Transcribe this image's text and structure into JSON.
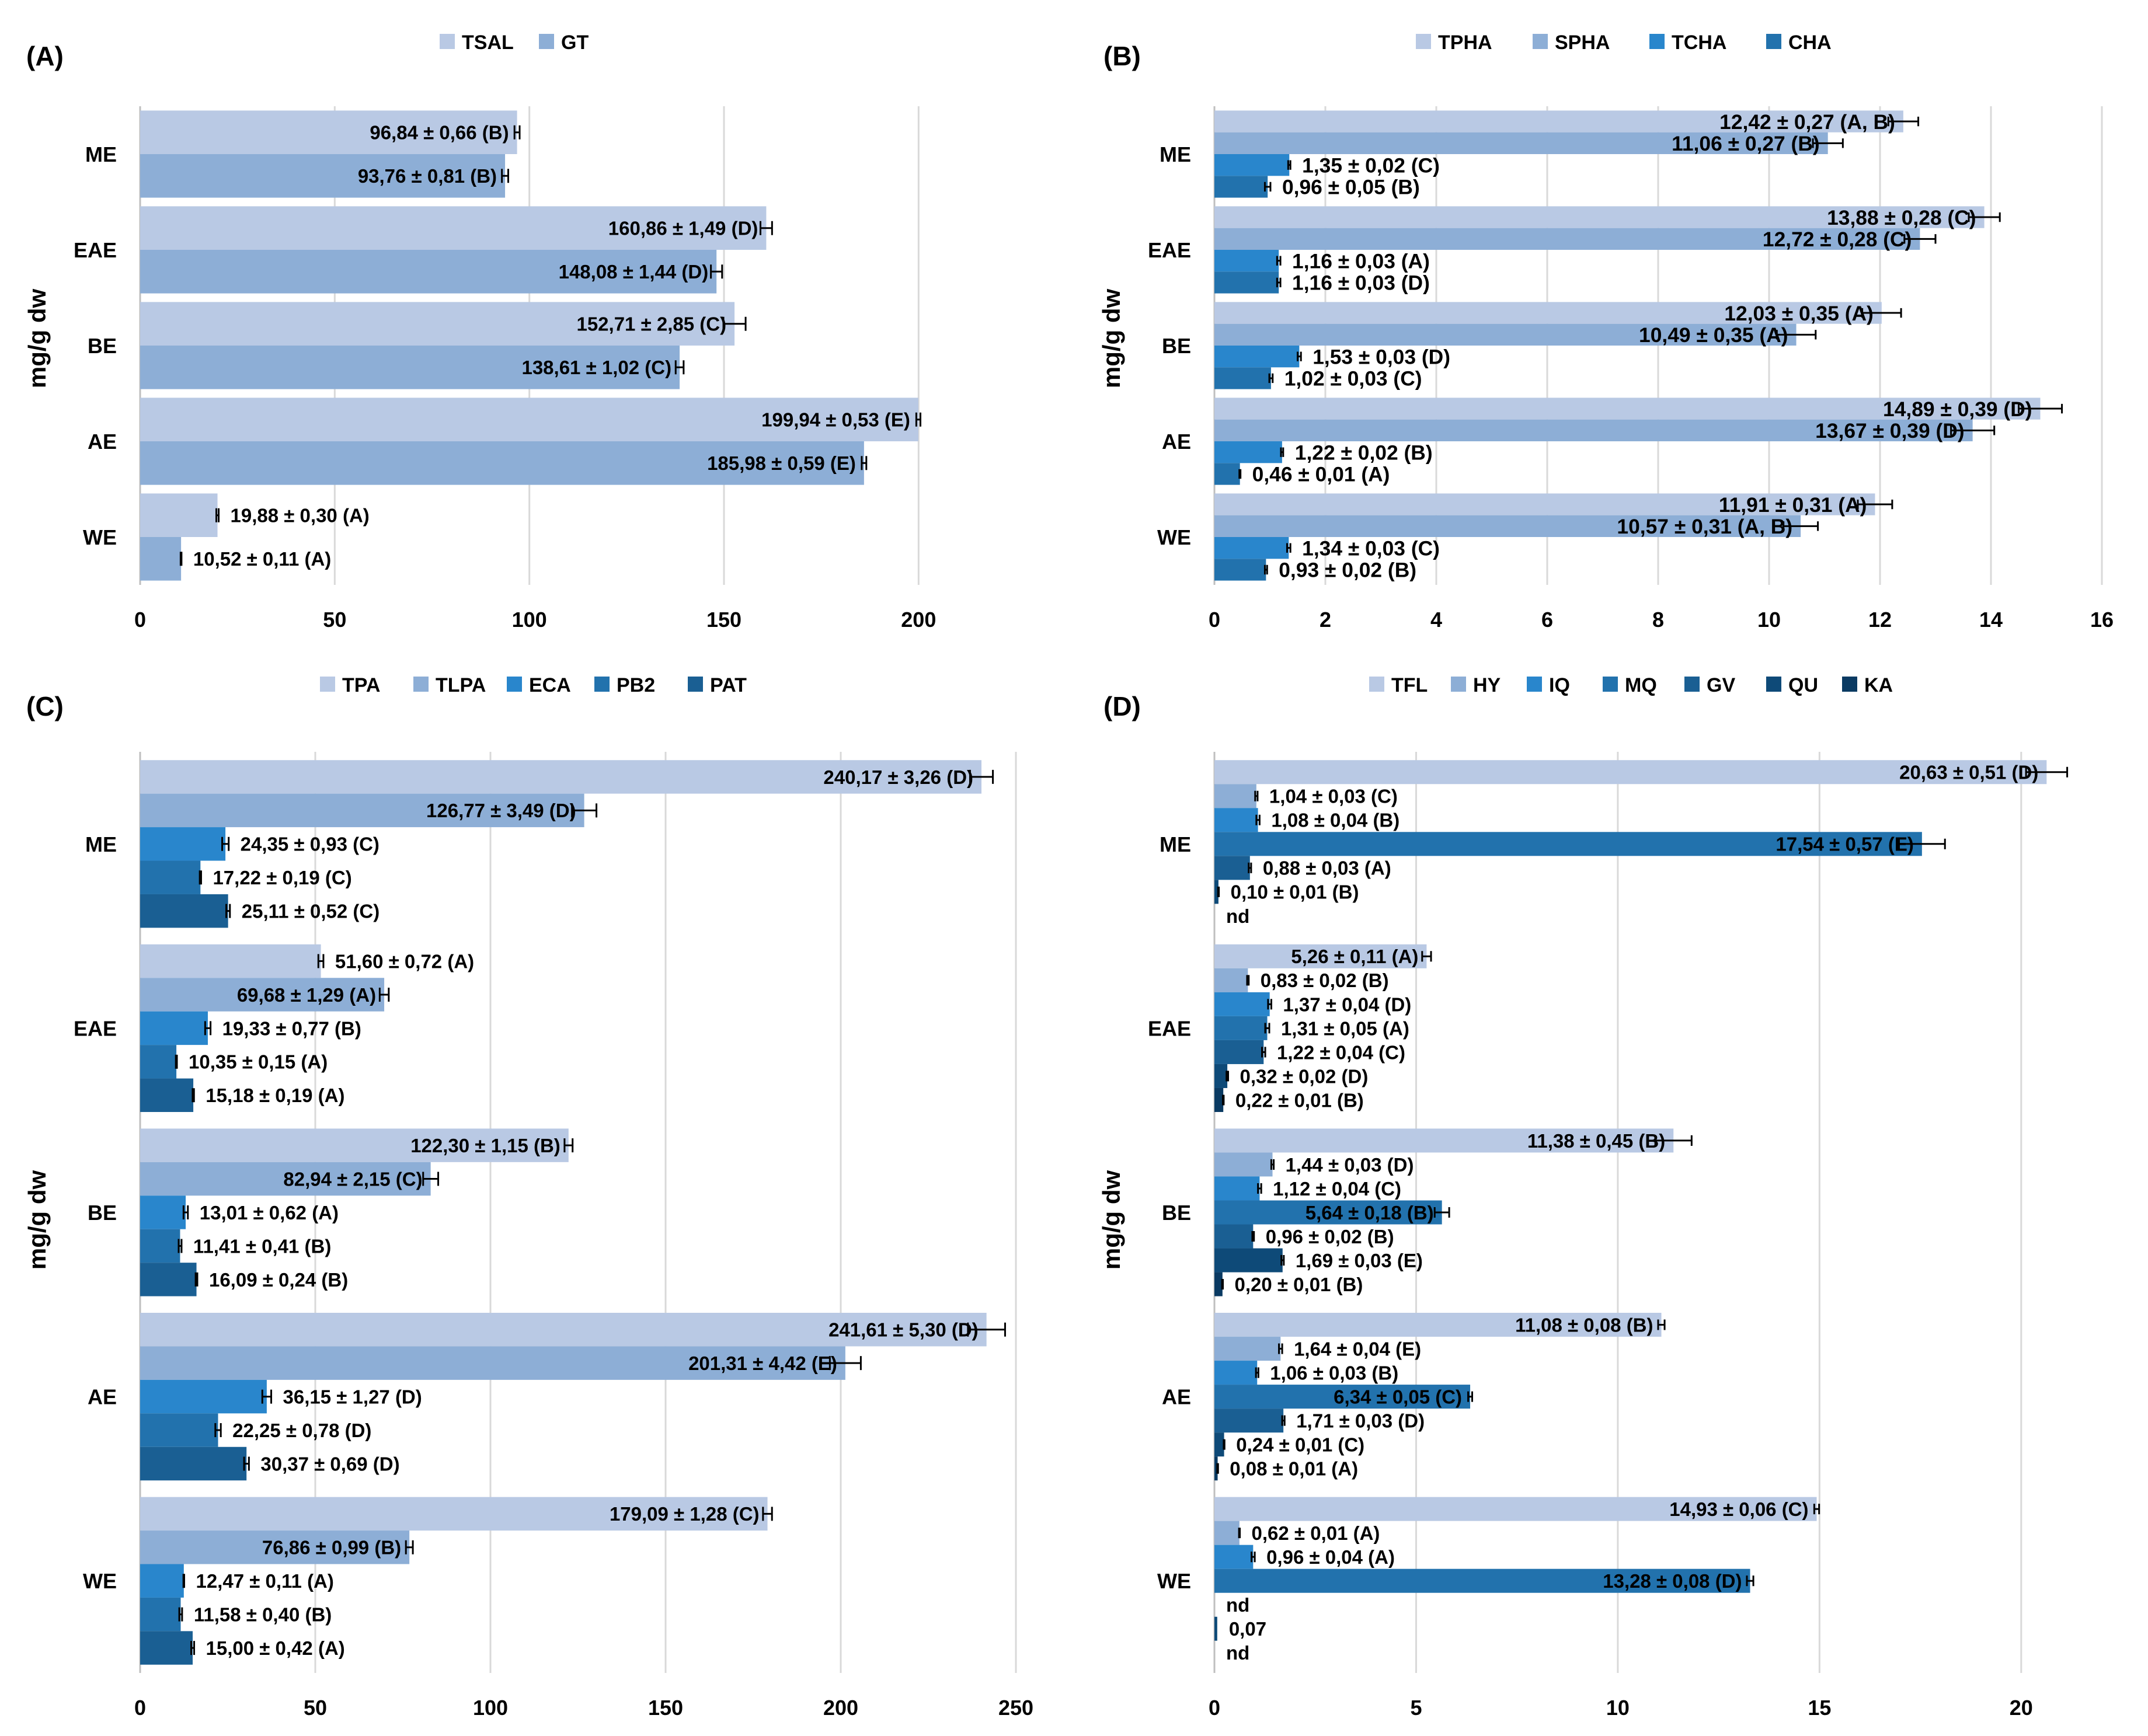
{
  "ylabel": "mg/g dw",
  "colors": [
    "#b9c9e4",
    "#8daed6",
    "#2986cc",
    "#2272ad",
    "#1a5f93",
    "#0e4a78",
    "#0a3a62"
  ],
  "chart_data": [
    {
      "panel": "(A)",
      "type": "bar",
      "orientation": "horizontal",
      "categories": [
        "ME",
        "EAE",
        "BE",
        "AE",
        "WE"
      ],
      "series": [
        {
          "name": "TSAL",
          "values": [
            96.84,
            160.86,
            152.71,
            199.94,
            19.88
          ],
          "errors": [
            0.66,
            1.49,
            2.85,
            0.53,
            0.3
          ],
          "labels": [
            "96,84 ± 0,66 (B)",
            "160,86 ± 1,49 (D)",
            "152,71 ± 2,85 (C)",
            "199,94 ± 0,53 (E)",
            "19,88 ± 0,30 (A)"
          ]
        },
        {
          "name": "GT",
          "values": [
            93.76,
            148.08,
            138.61,
            185.98,
            10.52
          ],
          "errors": [
            0.81,
            1.44,
            1.02,
            0.59,
            0.11
          ],
          "labels": [
            "93,76 ± 0,81 (B)",
            "148,08 ± 1,44 (D)",
            "138,61 ± 1,02 (C)",
            "185,98 ± 0,59 (E)",
            "10,52 ± 0,11 (A)"
          ]
        }
      ],
      "xlim": [
        0,
        225
      ],
      "xticks": [
        0,
        50,
        100,
        150,
        200
      ],
      "xtick_labels": [
        "0",
        "50",
        "100",
        "150",
        "200"
      ],
      "legend": "top"
    },
    {
      "panel": "(B)",
      "type": "bar",
      "orientation": "horizontal",
      "categories": [
        "ME",
        "EAE",
        "BE",
        "AE",
        "WE"
      ],
      "series": [
        {
          "name": "TPHA",
          "values": [
            12.42,
            13.88,
            12.03,
            14.89,
            11.91
          ],
          "errors": [
            0.27,
            0.28,
            0.35,
            0.39,
            0.31
          ],
          "labels": [
            "12,42 ± 0,27 (A, B)",
            "13,88 ± 0,28 (C)",
            "12,03 ± 0,35 (A)",
            "14,89 ± 0,39 (D)",
            "11,91 ± 0,31 (A)"
          ]
        },
        {
          "name": "SPHA",
          "values": [
            11.06,
            12.72,
            10.49,
            13.67,
            10.57
          ],
          "errors": [
            0.27,
            0.28,
            0.35,
            0.39,
            0.31
          ],
          "labels": [
            "11,06 ± 0,27 (B)",
            "12,72 ± 0,28 (C)",
            "10,49 ± 0,35 (A)",
            "13,67 ± 0,39 (D)",
            "10,57 ± 0,31 (A, B)"
          ]
        },
        {
          "name": "TCHA",
          "values": [
            1.35,
            1.16,
            1.53,
            1.22,
            1.34
          ],
          "errors": [
            0.02,
            0.03,
            0.03,
            0.02,
            0.03
          ],
          "labels": [
            "1,35 ± 0,02 (C)",
            "1,16 ± 0,03 (A)",
            "1,53 ± 0,03 (D)",
            "1,22 ± 0,02 (B)",
            "1,34 ± 0,03 (C)"
          ]
        },
        {
          "name": "CHA",
          "values": [
            0.96,
            1.16,
            1.02,
            0.46,
            0.93
          ],
          "errors": [
            0.05,
            0.03,
            0.03,
            0.01,
            0.02
          ],
          "labels": [
            "0,96 ± 0,05 (B)",
            "1,16 ± 0,03 (D)",
            "1,02 ± 0,03 (C)",
            "0,46 ± 0,01 (A)",
            "0,93 ± 0,02 (B)"
          ]
        }
      ],
      "xlim": [
        0,
        16
      ],
      "xticks": [
        0,
        2,
        4,
        6,
        8,
        10,
        12,
        14,
        16
      ],
      "xtick_labels": [
        "0",
        "2",
        "4",
        "6",
        "8",
        "10",
        "12",
        "14",
        "16"
      ],
      "legend": "top"
    },
    {
      "panel": "(C)",
      "type": "bar",
      "orientation": "horizontal",
      "categories": [
        "ME",
        "EAE",
        "BE",
        "AE",
        "WE"
      ],
      "series": [
        {
          "name": "TPA",
          "values": [
            240.17,
            51.6,
            122.3,
            241.61,
            179.09
          ],
          "errors": [
            3.26,
            0.72,
            1.15,
            5.3,
            1.28
          ],
          "labels": [
            "240,17 ± 3,26 (D)",
            "51,60 ± 0,72 (A)",
            "122,30 ± 1,15 (B)",
            "241,61 ± 5,30 (D)",
            "179,09 ± 1,28 (C)"
          ]
        },
        {
          "name": "TLPA",
          "values": [
            126.77,
            69.68,
            82.94,
            201.31,
            76.86
          ],
          "errors": [
            3.49,
            1.29,
            2.15,
            4.42,
            0.99
          ],
          "labels": [
            "126,77 ± 3,49 (D)",
            "69,68 ± 1,29 (A)",
            "82,94 ± 2,15 (C)",
            "201,31 ± 4,42 (E)",
            "76,86 ± 0,99 (B)"
          ]
        },
        {
          "name": "ECA",
          "values": [
            24.35,
            19.33,
            13.01,
            36.15,
            12.47
          ],
          "errors": [
            0.93,
            0.77,
            0.62,
            1.27,
            0.11
          ],
          "labels": [
            "24,35 ± 0,93 (C)",
            "19,33 ± 0,77 (B)",
            "13,01 ± 0,62 (A)",
            "36,15 ± 1,27 (D)",
            "12,47 ± 0,11 (A)"
          ]
        },
        {
          "name": "PB2",
          "values": [
            17.22,
            10.35,
            11.41,
            22.25,
            11.58
          ],
          "errors": [
            0.19,
            0.15,
            0.41,
            0.78,
            0.4
          ],
          "labels": [
            "17,22 ± 0,19 (C)",
            "10,35 ± 0,15 (A)",
            "11,41 ± 0,41 (B)",
            "22,25 ± 0,78 (D)",
            "11,58 ± 0,40 (B)"
          ]
        },
        {
          "name": "PAT",
          "values": [
            25.11,
            15.18,
            16.09,
            30.37,
            15.0
          ],
          "errors": [
            0.52,
            0.19,
            0.24,
            0.69,
            0.42
          ],
          "labels": [
            "25,11 ± 0,52 (C)",
            "15,18 ± 0,19 (A)",
            "16,09 ± 0,24 (B)",
            "30,37 ± 0,69 (D)",
            "15,00 ± 0,42 (A)"
          ]
        }
      ],
      "xlim": [
        0,
        250
      ],
      "xticks": [
        0,
        50,
        100,
        150,
        200,
        250
      ],
      "xtick_labels": [
        "0",
        "50",
        "100",
        "150",
        "200",
        "250"
      ],
      "legend": "top"
    },
    {
      "panel": "(D)",
      "type": "bar",
      "orientation": "horizontal",
      "categories": [
        "ME",
        "EAE",
        "BE",
        "AE",
        "WE"
      ],
      "series": [
        {
          "name": "TFL",
          "values": [
            20.63,
            5.26,
            11.38,
            11.08,
            14.93
          ],
          "errors": [
            0.51,
            0.11,
            0.45,
            0.08,
            0.06
          ],
          "labels": [
            "20,63 ± 0,51 (D)",
            "5,26 ± 0,11 (A)",
            "11,38 ± 0,45 (B)",
            "11,08 ± 0,08 (B)",
            "14,93 ± 0,06 (C)"
          ]
        },
        {
          "name": "HY",
          "values": [
            1.04,
            0.83,
            1.44,
            1.64,
            0.62
          ],
          "errors": [
            0.03,
            0.02,
            0.03,
            0.04,
            0.01
          ],
          "labels": [
            "1,04 ± 0,03 (C)",
            "0,83 ± 0,02 (B)",
            "1,44 ± 0,03 (D)",
            "1,64 ± 0,04 (E)",
            "0,62 ± 0,01 (A)"
          ]
        },
        {
          "name": "IQ",
          "values": [
            1.08,
            1.37,
            1.12,
            1.06,
            0.96
          ],
          "errors": [
            0.04,
            0.04,
            0.04,
            0.03,
            0.04
          ],
          "labels": [
            "1,08 ± 0,04 (B)",
            "1,37 ± 0,04 (D)",
            "1,12 ± 0,04 (C)",
            "1,06 ± 0,03 (B)",
            "0,96 ± 0,04 (A)"
          ]
        },
        {
          "name": "MQ",
          "values": [
            17.54,
            1.31,
            5.64,
            6.34,
            13.28
          ],
          "errors": [
            0.57,
            0.05,
            0.18,
            0.05,
            0.08
          ],
          "labels": [
            "17,54 ± 0,57 (E)",
            "1,31 ± 0,05 (A)",
            "5,64 ± 0,18 (B)",
            "6,34 ± 0,05 (C)",
            "13,28 ± 0,08 (D)"
          ]
        },
        {
          "name": "GV",
          "values": [
            0.88,
            1.22,
            0.96,
            1.71,
            null
          ],
          "errors": [
            0.03,
            0.04,
            0.02,
            0.03,
            null
          ],
          "labels": [
            "0,88 ± 0,03 (A)",
            "1,22 ± 0,04 (C)",
            "0,96 ± 0,02 (B)",
            "1,71 ± 0,03 (D)",
            "nd"
          ]
        },
        {
          "name": "QU",
          "values": [
            0.1,
            0.32,
            1.69,
            0.24,
            0.07
          ],
          "errors": [
            0.01,
            0.02,
            0.03,
            0.01,
            null
          ],
          "labels": [
            "0,10 ± 0,01 (B)",
            "0,32 ± 0,02 (D)",
            "1,69 ± 0,03 (E)",
            "0,24 ± 0,01 (C)",
            "0,07"
          ]
        },
        {
          "name": "KA",
          "values": [
            null,
            0.22,
            0.2,
            0.08,
            null
          ],
          "errors": [
            null,
            0.01,
            0.01,
            0.01,
            null
          ],
          "labels": [
            "nd",
            "0,22 ± 0,01 (B)",
            "0,20 ± 0,01 (B)",
            "0,08 ± 0,01 (A)",
            "nd"
          ]
        }
      ],
      "xlim": [
        0,
        22
      ],
      "xticks": [
        0,
        5,
        10,
        15,
        20
      ],
      "xtick_labels": [
        "0",
        "5",
        "10",
        "15",
        "20"
      ],
      "legend": "top"
    }
  ]
}
